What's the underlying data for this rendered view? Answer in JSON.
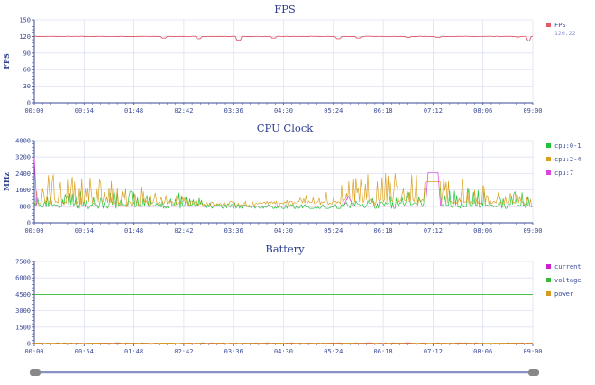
{
  "x_ticks": [
    "00:00",
    "00:54",
    "01:48",
    "02:42",
    "03:36",
    "04:30",
    "05:24",
    "06:18",
    "07:12",
    "08:06",
    "09:00"
  ],
  "colors": {
    "title": "#2f3f8f",
    "axis": "#3a4a9a",
    "grid": "#dde1f2",
    "fps": "#e05a6a",
    "cpu0_1": "#22c33a",
    "cpu2_4": "#d9a020",
    "cpu7": "#dd44dd",
    "current": "#cc22cc",
    "voltage": "#33bb33",
    "power": "#d49a22",
    "slider": "#8a90c8",
    "handle": "#888888"
  },
  "chart_data": [
    {
      "type": "line",
      "title": "FPS",
      "ylabel": "FPS",
      "ylim": [
        0,
        150
      ],
      "y_ticks": [
        "0",
        "30",
        "60",
        "90",
        "120",
        "150"
      ],
      "x_range": [
        "00:00",
        "09:00"
      ],
      "x_tick_labels": [
        "00:00",
        "00:54",
        "01:48",
        "02:42",
        "03:36",
        "04:30",
        "05:24",
        "06:18",
        "07:12",
        "08:06",
        "09:00"
      ],
      "grid": true,
      "legend_position": "right",
      "series": [
        {
          "name": "FPS",
          "legend_value": "120.22",
          "color": "#e05a6a",
          "baseline": 120,
          "dips": [
            [
              0.26,
              117
            ],
            [
              0.33,
              116
            ],
            [
              0.41,
              113
            ],
            [
              0.48,
              117
            ],
            [
              0.61,
              116
            ],
            [
              0.65,
              117
            ],
            [
              0.75,
              118
            ],
            [
              0.81,
              118
            ],
            [
              0.97,
              119
            ],
            [
              0.992,
              112
            ]
          ]
        }
      ]
    },
    {
      "type": "line",
      "title": "CPU Clock",
      "ylabel": "MHz",
      "ylim": [
        0,
        4000
      ],
      "y_ticks": [
        "0",
        "800",
        "1600",
        "2400",
        "3200",
        "4000"
      ],
      "x_range": [
        "00:00",
        "09:00"
      ],
      "x_tick_labels": [
        "00:00",
        "00:54",
        "01:48",
        "02:42",
        "03:36",
        "04:30",
        "05:24",
        "06:18",
        "07:12",
        "08:06",
        "09:00"
      ],
      "grid": true,
      "legend_position": "right",
      "series": [
        {
          "name": "cpu:0-1",
          "color": "#22c33a",
          "base": 750,
          "range": [
            600,
            1700
          ]
        },
        {
          "name": "cpu:2-4",
          "color": "#d9a020",
          "base": 900,
          "range": [
            750,
            2400
          ]
        },
        {
          "name": "cpu:7",
          "color": "#dd44dd",
          "segments": [
            [
              0.0,
              3200
            ],
            [
              0.005,
              800
            ],
            [
              0.62,
              800
            ],
            [
              0.63,
              1300
            ],
            [
              0.64,
              800
            ],
            [
              0.785,
              800
            ],
            [
              0.79,
              2450
            ],
            [
              0.81,
              2450
            ],
            [
              0.815,
              800
            ],
            [
              1.0,
              800
            ]
          ]
        }
      ]
    },
    {
      "type": "line",
      "title": "Battery",
      "ylabel": "",
      "ylim": [
        0,
        7500
      ],
      "y_ticks": [
        "0",
        "1500",
        "3000",
        "4500",
        "6000",
        "7500"
      ],
      "x_range": [
        "00:00",
        "09:00"
      ],
      "x_tick_labels": [
        "00:00",
        "00:54",
        "01:48",
        "02:42",
        "03:36",
        "04:30",
        "05:24",
        "06:18",
        "07:12",
        "08:06",
        "09:00"
      ],
      "grid": true,
      "legend_position": "right",
      "series": [
        {
          "name": "current",
          "color": "#cc22cc",
          "value": 20
        },
        {
          "name": "voltage",
          "color": "#33bb33",
          "value": 4500
        },
        {
          "name": "power",
          "color": "#d49a22",
          "value": 40
        }
      ]
    }
  ],
  "zoom_slider": {
    "start": 0.0,
    "end": 1.0
  }
}
